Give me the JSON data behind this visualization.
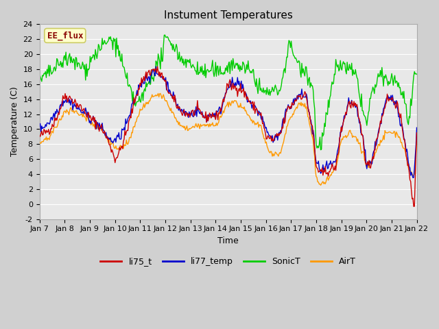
{
  "title": "Instument Temperatures",
  "xlabel": "Time",
  "ylabel": "Temperature (C)",
  "ylim": [
    -2,
    24
  ],
  "yticks": [
    -2,
    0,
    2,
    4,
    6,
    8,
    10,
    12,
    14,
    16,
    18,
    20,
    22,
    24
  ],
  "xtick_labels": [
    "Jan 7",
    "Jan 8",
    "Jan 9",
    "Jan 10",
    "Jan 11",
    "Jan 12",
    "Jan 13",
    "Jan 14",
    "Jan 15",
    "Jan 16",
    "Jan 17",
    "Jan 18",
    "Jan 19",
    "Jan 20",
    "Jan 21",
    "Jan 22"
  ],
  "colors": {
    "li75_t": "#cc0000",
    "li77_temp": "#0000cc",
    "SonicT": "#00cc00",
    "AirT": "#ff9900"
  },
  "annotation_text": "EE_flux",
  "annotation_color": "#880000",
  "annotation_bg": "#ffffcc",
  "annotation_edge": "#cccc66",
  "plot_bg": "#e8e8e8",
  "fig_bg": "#d0d0d0",
  "grid_color": "#ffffff",
  "title_fontsize": 11,
  "axis_label_fontsize": 9,
  "tick_fontsize": 8,
  "legend_fontsize": 9,
  "linewidth": 1.0
}
